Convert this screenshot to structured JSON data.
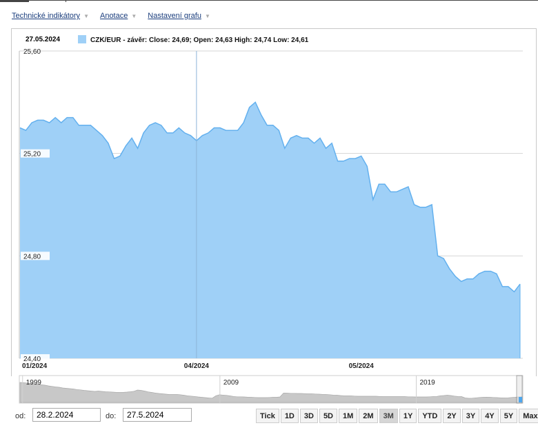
{
  "toolbar": {
    "items": [
      {
        "label": "Technické indikátory"
      },
      {
        "label": "Anotace"
      },
      {
        "label": "Nastavení grafu"
      }
    ]
  },
  "tooltip": {
    "date": "27.05.2024",
    "text": "CZK/EUR - závěr: Close: 24,69; Open: 24,63 High: 24,74 Low: 24,61",
    "series_color": "#9fd0f7"
  },
  "colors": {
    "fill": "#9fd0f7",
    "line": "#63b0ee",
    "navigator_fill": "#c8c8c8"
  },
  "chart_data": {
    "type": "area",
    "title": "",
    "xlabel": "",
    "ylabel": "",
    "ylim": [
      24.4,
      25.6
    ],
    "yticks": [
      "25,60",
      "25,20",
      "24,80",
      "24,40"
    ],
    "yticks_values": [
      25.6,
      25.2,
      24.8,
      24.4
    ],
    "xticks": [
      {
        "label": "01/2024",
        "index": 0
      },
      {
        "label": "04/2024",
        "index": 30
      },
      {
        "label": "05/2024",
        "index": 58
      }
    ],
    "crosshair_index": 30,
    "grid": true,
    "series": [
      {
        "name": "CZK/EUR - závěr",
        "values": [
          25.3,
          25.29,
          25.32,
          25.33,
          25.33,
          25.32,
          25.34,
          25.32,
          25.34,
          25.34,
          25.31,
          25.31,
          25.31,
          25.29,
          25.27,
          25.24,
          25.18,
          25.19,
          25.23,
          25.26,
          25.22,
          25.28,
          25.31,
          25.32,
          25.31,
          25.28,
          25.28,
          25.3,
          25.28,
          25.27,
          25.25,
          25.27,
          25.28,
          25.3,
          25.3,
          25.29,
          25.29,
          25.29,
          25.32,
          25.38,
          25.4,
          25.35,
          25.31,
          25.31,
          25.29,
          25.22,
          25.26,
          25.27,
          25.26,
          25.26,
          25.24,
          25.26,
          25.22,
          25.24,
          25.17,
          25.17,
          25.18,
          25.18,
          25.19,
          25.15,
          25.02,
          25.08,
          25.08,
          25.05,
          25.05,
          25.06,
          25.07,
          25.0,
          24.99,
          24.99,
          25.0,
          24.8,
          24.79,
          24.75,
          24.72,
          24.7,
          24.71,
          24.71,
          24.73,
          24.74,
          24.74,
          24.73,
          24.68,
          24.68,
          24.66,
          24.69
        ]
      }
    ]
  },
  "navigator": {
    "labels": [
      {
        "label": "1999",
        "pos": 0.012
      },
      {
        "label": "2009",
        "pos": 0.405
      },
      {
        "label": "2019",
        "pos": 0.796
      }
    ],
    "values": [
      33.6,
      33.5,
      33.3,
      33.0,
      32.8,
      32.6,
      32.3,
      32.0,
      31.6,
      31.3,
      31.0,
      30.8,
      30.4,
      30.2,
      30.0,
      29.8,
      29.5,
      29.3,
      29.0,
      28.8,
      28.6,
      28.4,
      28.6,
      28.4,
      28.2,
      28.1,
      28.0,
      27.9,
      27.8,
      27.9,
      28.0,
      28.2,
      28.5,
      29.2,
      29.0,
      28.6,
      28.1,
      27.8,
      27.5,
      27.2,
      27.0,
      26.8,
      26.6,
      26.7,
      26.7,
      26.5,
      26.2,
      25.9,
      25.7,
      25.5,
      25.2,
      25.0,
      24.8,
      24.6,
      24.5,
      25.9,
      26.5,
      26.3,
      26.1,
      25.8,
      25.5,
      25.3,
      25.3,
      25.2,
      25.1,
      25.0,
      24.9,
      24.8,
      24.8,
      24.8,
      24.9,
      25.0,
      25.0,
      25.2,
      27.5,
      27.4,
      27.3,
      27.3,
      27.2,
      27.2,
      27.1,
      27.0,
      27.0,
      26.9,
      26.8,
      26.7,
      26.6,
      26.5,
      26.3,
      26.2,
      26.0,
      25.9,
      25.9,
      25.8,
      25.7,
      25.6,
      25.6,
      25.6,
      25.6,
      25.6,
      25.6,
      25.5,
      25.4,
      25.4,
      25.4,
      25.4,
      25.4,
      25.4,
      25.4,
      25.3,
      25.3,
      25.2,
      25.2,
      25.2,
      25.2,
      25.3,
      25.4,
      25.5,
      25.9,
      26.0,
      26.2,
      26.0,
      25.7,
      25.5,
      25.4,
      24.6,
      24.4,
      24.5,
      24.7,
      24.9,
      25.0,
      25.1,
      25.0,
      24.9,
      24.8,
      24.7,
      24.6,
      24.7,
      24.9,
      25.0,
      25.2,
      25.3
    ]
  },
  "range": {
    "from_label": "od:",
    "from_value": "28.2.2024",
    "to_label": "do:",
    "to_value": "27.5.2024",
    "buttons": [
      "Tick",
      "1D",
      "3D",
      "5D",
      "1M",
      "2M",
      "3M",
      "1Y",
      "YTD",
      "2Y",
      "3Y",
      "4Y",
      "5Y",
      "Max"
    ],
    "active": "3M"
  }
}
